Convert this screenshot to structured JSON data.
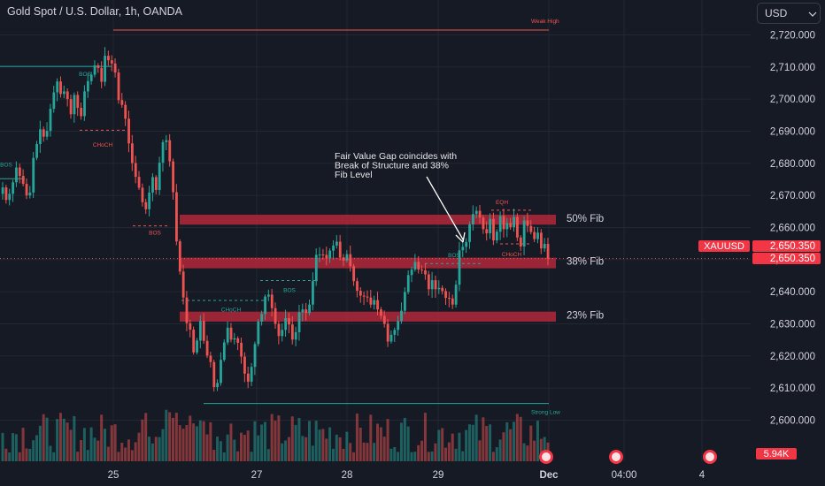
{
  "header": {
    "title": "Gold Spot / U.S. Dollar, 1h, OANDA"
  },
  "currency_button": {
    "label": "USD"
  },
  "price_tag": {
    "symbol": "XAUUSD",
    "price": "2,650.350",
    "bg_color": "#f23645"
  },
  "volume_tag": {
    "label": "5.94K",
    "bg_color": "#f23645"
  },
  "annotation": {
    "lines": [
      "Fair Value Gap coincides with",
      "Break of Structure and 38%",
      "Fib Level"
    ]
  },
  "colors": {
    "background": "#161a25",
    "bull": "#26a69a",
    "bear": "#ef5350",
    "fib_zone": "#b2283a",
    "grid": "#232733",
    "axis_text": "#d1d4dc"
  },
  "chart_data": {
    "type": "candlestick",
    "title": "Gold Spot / U.S. Dollar, 1h, OANDA",
    "ylim": [
      2594,
      2726
    ],
    "y_ticks": [
      2600,
      2610,
      2620,
      2630,
      2640,
      2650,
      2660,
      2670,
      2680,
      2690,
      2700,
      2710,
      2720
    ],
    "y_tick_labels": [
      "2,600.000",
      "2,610.000",
      "2,620.000",
      "2,630.000",
      "2,640.000",
      "2,650.000",
      "2,660.000",
      "2,670.000",
      "2,680.000",
      "2,690.000",
      "2,700.000",
      "2,710.000",
      "2,720.000"
    ],
    "x_tick_labels": [
      "25",
      "27",
      "28",
      "29",
      "Dec",
      "04:00",
      "4"
    ],
    "fib_levels": [
      {
        "label": "50% Fib",
        "low": 2662.0,
        "high": 2664.0
      },
      {
        "label": "38% Fib",
        "low": 2648.4,
        "high": 2650.6
      },
      {
        "label": "23% Fib",
        "low": 2631.8,
        "high": 2633.8
      }
    ],
    "levels": [
      {
        "label": "Weak High",
        "price": 2721.5
      },
      {
        "label": "Strong Low",
        "price": 2605.2
      }
    ],
    "structure_labels": [
      {
        "label": "BOS",
        "price": 2707.8
      },
      {
        "label": "CHoCH",
        "price": 2685.7
      },
      {
        "label": "BOS",
        "price": 2679.5
      },
      {
        "label": "BOS",
        "price": 2658.3
      },
      {
        "label": "BOS",
        "price": 2640.4
      },
      {
        "label": "CHoCH",
        "price": 2634.4
      },
      {
        "label": "BOS",
        "price": 2651.3
      },
      {
        "label": "EQH",
        "price": 2667.9
      },
      {
        "label": "CHoCH",
        "price": 2651.6
      }
    ],
    "close_series": [
      2672.5,
      2668.6,
      2670.5,
      2674.1,
      2678.7,
      2676.1,
      2673.6,
      2670.0,
      2670.9,
      2681.7,
      2686.0,
      2690.6,
      2688.3,
      2690.1,
      2697.0,
      2702.1,
      2705.5,
      2701.6,
      2702.4,
      2700.0,
      2695.3,
      2701.3,
      2697.3,
      2694.7,
      2702.4,
      2705.6,
      2707.6,
      2710.5,
      2709.7,
      2705.4,
      2713.5,
      2712.1,
      2711.1,
      2708.3,
      2699.7,
      2698.2,
      2693.9,
      2686.2,
      2680.1,
      2675.8,
      2672.4,
      2667.9,
      2665.7,
      2670.9,
      2675.7,
      2671.7,
      2680.2,
      2686.6,
      2687.2,
      2680.6,
      2671.0,
      2655.7,
      2646.3,
      2638.2,
      2630.2,
      2628.2,
      2621.1,
      2624.8,
      2630.9,
      2624.7,
      2620.1,
      2618.1,
      2610.3,
      2611.6,
      2618.8,
      2624.2,
      2628.8,
      2625.1,
      2625.5,
      2624.1,
      2619.8,
      2614.5,
      2612.0,
      2616.6,
      2623.7,
      2630.7,
      2633.1,
      2638.5,
      2639.1,
      2634.9,
      2630.0,
      2626.2,
      2628.1,
      2631.8,
      2629.8,
      2625.1,
      2627.4,
      2633.6,
      2634.5,
      2633.4,
      2636.0,
      2643.3,
      2651.5,
      2651.6,
      2651.5,
      2650.4,
      2652.8,
      2654.4,
      2655.6,
      2650.7,
      2649.7,
      2651.7,
      2648.0,
      2643.3,
      2640.3,
      2638.8,
      2638.5,
      2638.2,
      2636.0,
      2637.4,
      2634.5,
      2632.5,
      2630.0,
      2624.5,
      2626.6,
      2628.1,
      2630.9,
      2634.1,
      2639.9,
      2645.2,
      2646.9,
      2649.3,
      2646.9,
      2646.7,
      2645.4,
      2640.8,
      2643.6,
      2640.8,
      2641.2,
      2640.2,
      2638.1,
      2637.9,
      2636.0,
      2642.2,
      2652.9,
      2654.0,
      2655.5,
      2661.0,
      2664.2,
      2665.2,
      2663.1,
      2659.5,
      2658.2,
      2662.7,
      2656.0,
      2658.7,
      2663.6,
      2659.5,
      2661.4,
      2660.1,
      2663.3,
      2656.9,
      2654.1,
      2662.2,
      2660.5,
      2658.6,
      2656.4,
      2658.4,
      2653.5,
      2654.9,
      2650.3
    ],
    "volume_label": "5.94K",
    "volume_ticks": 5
  }
}
